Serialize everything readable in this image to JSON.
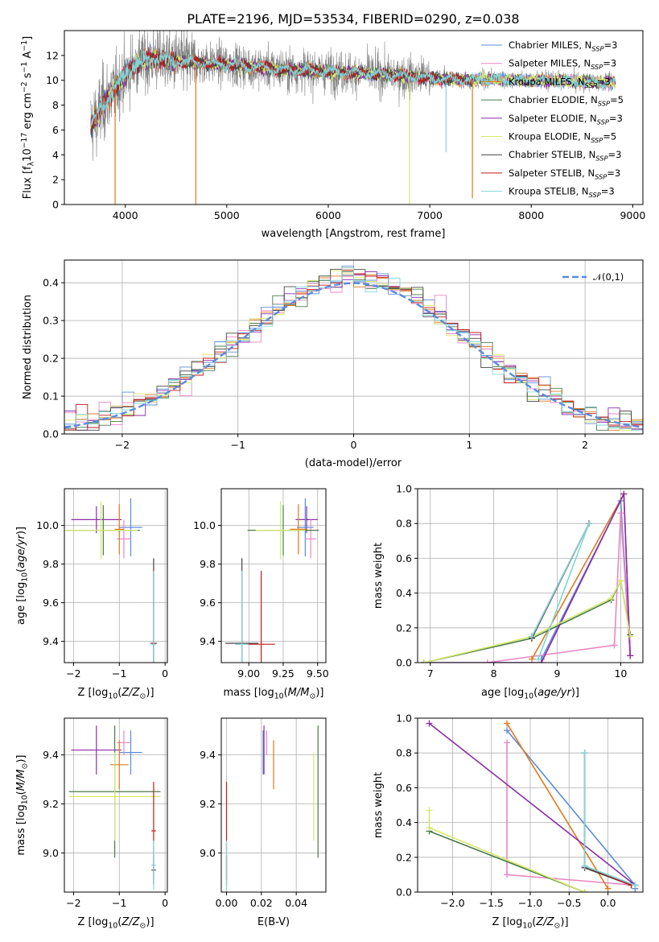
{
  "title": "PLATE=2196, MJD=53534, FIBERID=0290, z=0.038",
  "colors": {
    "chabrier_miles": "#5b8bd9",
    "salpeter_miles": "#e887c4",
    "kroupa_miles": "#e07a1e",
    "chabrier_elodie": "#4a7a4a",
    "salpeter_elodie": "#8a2ca8",
    "kroupa_elodie": "#d6e86a",
    "chabrier_stelib": "#444444",
    "salpeter_stelib": "#c21b1b",
    "kroupa_stelib": "#7fd6d9",
    "spectrum_data": "#808080",
    "gaussian": "#5b8bd9",
    "grid": "#b0b0b0"
  },
  "legend_models": [
    {
      "key": "chabrier_miles",
      "name": "Chabrier MILES",
      "nssp": "3"
    },
    {
      "key": "salpeter_miles",
      "name": "Salpeter MILES",
      "nssp": "3"
    },
    {
      "key": "kroupa_miles",
      "name": "Kroupa MILES",
      "nssp": "3"
    },
    {
      "key": "chabrier_elodie",
      "name": "Chabrier ELODIE",
      "nssp": "5"
    },
    {
      "key": "salpeter_elodie",
      "name": "Salpeter ELODIE",
      "nssp": "3"
    },
    {
      "key": "kroupa_elodie",
      "name": "Kroupa ELODIE",
      "nssp": "5"
    },
    {
      "key": "chabrier_stelib",
      "name": "Chabrier STELIB",
      "nssp": "3"
    },
    {
      "key": "salpeter_stelib",
      "name": "Salpeter STELIB",
      "nssp": "3"
    },
    {
      "key": "kroupa_stelib",
      "name": "Kroupa STELIB",
      "nssp": "3"
    }
  ],
  "chart_data": [
    {
      "id": "spectrum",
      "type": "line",
      "title": "PLATE=2196, MJD=53534, FIBERID=0290, z=0.038",
      "xlabel": "wavelength [Angstrom, rest frame]",
      "ylabel": "Flux [f_λ10^-17 erg cm^-2 s^-1 A^-1]",
      "xlim": [
        3400,
        9100
      ],
      "ylim": [
        0,
        14
      ],
      "xticks": [
        4000,
        5000,
        6000,
        7000,
        8000,
        9000
      ],
      "yticks": [
        0,
        2,
        4,
        6,
        8,
        10,
        12
      ],
      "grid": false,
      "legend_position": "top-right",
      "data_range": [
        3660,
        8830
      ],
      "continuum": {
        "x": [
          3660,
          3720,
          3800,
          3900,
          4000,
          4100,
          4300,
          4500,
          5000,
          5500,
          6000,
          6500,
          7000,
          7400,
          7500,
          8000,
          8500,
          8830
        ],
        "y": [
          6.3,
          7.0,
          8.3,
          9.3,
          10.4,
          11.4,
          11.8,
          11.5,
          11.3,
          10.9,
          10.7,
          10.5,
          10.2,
          10.0,
          10.1,
          10.0,
          9.9,
          9.8
        ]
      },
      "drops": [
        {
          "model": "kroupa_miles",
          "x": 3900,
          "y": 0
        },
        {
          "model": "kroupa_miles",
          "x": 4695,
          "y": 0
        },
        {
          "model": "kroupa_elodie",
          "x": 6800,
          "y": 0
        },
        {
          "model": "kroupa_stelib",
          "x": 7160,
          "y": 4.2
        },
        {
          "model": "kroupa_miles",
          "x": 7420,
          "y": 0.5
        }
      ]
    },
    {
      "id": "residuals",
      "type": "histogram",
      "xlabel": "(data-model)/error",
      "ylabel": "Normed distribution",
      "xlim": [
        -2.5,
        2.5
      ],
      "ylim": [
        0,
        0.46
      ],
      "xticks": [
        -2,
        -1,
        0,
        1,
        2
      ],
      "yticks": [
        0.0,
        0.1,
        0.2,
        0.3,
        0.4
      ],
      "grid": true,
      "legend": "𝒩(0,1)",
      "legend_position": "top-right",
      "bin_width": 0.1,
      "bins_start": -2.5,
      "reference_curve": "normal(0,1)"
    },
    {
      "id": "age_vs_Z",
      "type": "scatter",
      "xlabel": "Z [log10(Z/Z⊙)]",
      "ylabel": "age [log10(age/yr)]",
      "xlim": [
        -2.2,
        0.05
      ],
      "ylim": [
        9.29,
        10.19
      ],
      "xticks": [
        -2,
        -1,
        0
      ],
      "yticks": [
        9.4,
        9.6,
        9.8,
        10.0
      ],
      "grid": true,
      "points": [
        {
          "model": "salpeter_elodie",
          "x": -1.5,
          "y": 10.03,
          "ex": 0.55,
          "ey": 0.07
        },
        {
          "model": "chabrier_miles",
          "x": -0.75,
          "y": 9.99,
          "ex": 0.25,
          "ey": 0.15
        },
        {
          "model": "salpeter_miles",
          "x": -0.9,
          "y": 9.93,
          "ex": 0.15,
          "ey": 0.1
        },
        {
          "model": "kroupa_miles",
          "x": -1.0,
          "y": 9.98,
          "ex": 0.1,
          "ey": 0.13
        },
        {
          "model": "chabrier_elodie",
          "x": -1.35,
          "y": 9.975,
          "ex": 0.8,
          "ey": 0.13
        },
        {
          "model": "kroupa_elodie",
          "x": -1.4,
          "y": 9.975,
          "ex": 0.8,
          "ey": 0.15
        },
        {
          "model": "chabrier_stelib",
          "x": -0.25,
          "y": 9.39,
          "ex": 0.07,
          "ey": 0.44
        },
        {
          "model": "salpeter_stelib",
          "x": -0.25,
          "y": 9.39,
          "ex": 0.05,
          "ey": 0.38
        },
        {
          "model": "kroupa_stelib",
          "x": -0.25,
          "y": 9.385,
          "ex": 0.05,
          "ey": 0.38
        }
      ]
    },
    {
      "id": "age_vs_mass",
      "type": "scatter",
      "xlabel": "mass [log10(M/M⊙)]",
      "ylabel": "",
      "xlim": [
        8.8,
        9.56
      ],
      "ylim": [
        9.29,
        10.19
      ],
      "xticks": [
        9.0,
        9.25,
        9.5
      ],
      "yticks": [
        9.4,
        9.6,
        9.8,
        10.0
      ],
      "grid": true,
      "points": [
        {
          "model": "salpeter_elodie",
          "x": 9.42,
          "y": 10.03,
          "ex": 0.08,
          "ey": 0.07
        },
        {
          "model": "chabrier_miles",
          "x": 9.41,
          "y": 9.99,
          "ex": 0.06,
          "ey": 0.15
        },
        {
          "model": "salpeter_miles",
          "x": 9.45,
          "y": 9.93,
          "ex": 0.04,
          "ey": 0.1
        },
        {
          "model": "kroupa_miles",
          "x": 9.36,
          "y": 9.98,
          "ex": 0.06,
          "ey": 0.13
        },
        {
          "model": "chabrier_elodie",
          "x": 9.25,
          "y": 9.975,
          "ex": 0.26,
          "ey": 0.13
        },
        {
          "model": "kroupa_elodie",
          "x": 9.23,
          "y": 9.975,
          "ex": 0.18,
          "ey": 0.15
        },
        {
          "model": "chabrier_stelib",
          "x": 8.95,
          "y": 9.39,
          "ex": 0.12,
          "ey": 0.44
        },
        {
          "model": "salpeter_stelib",
          "x": 9.09,
          "y": 9.385,
          "ex": 0.1,
          "ey": 0.38
        },
        {
          "model": "kroupa_stelib",
          "x": 8.95,
          "y": 9.385,
          "ex": 0.05,
          "ey": 0.38
        }
      ]
    },
    {
      "id": "weight_vs_age",
      "type": "line",
      "xlabel": "age [log10(age/yr)]",
      "ylabel": "mass weight",
      "xlim": [
        6.8,
        10.35
      ],
      "ylim": [
        0,
        1
      ],
      "xticks": [
        7,
        8,
        9,
        10
      ],
      "yticks": [
        0.0,
        0.2,
        0.4,
        0.6,
        0.8,
        1.0
      ],
      "grid": true,
      "series": [
        {
          "model": "chabrier_miles",
          "x": [
            8.75,
            10.0,
            10.15
          ],
          "y": [
            0.02,
            0.93,
            0.04
          ]
        },
        {
          "model": "salpeter_miles",
          "x": [
            7.9,
            9.9,
            10.0,
            10.15
          ],
          "y": [
            0.0,
            0.1,
            0.86,
            0.04
          ]
        },
        {
          "model": "kroupa_miles",
          "x": [
            8.6,
            10.05,
            10.15
          ],
          "y": [
            0.02,
            0.97,
            0.04
          ]
        },
        {
          "model": "chabrier_elodie",
          "x": [
            6.9,
            8.6,
            9.85,
            10.0,
            10.15
          ],
          "y": [
            0.0,
            0.14,
            0.36,
            0.47,
            0.16
          ]
        },
        {
          "model": "salpeter_elodie",
          "x": [
            6.9,
            8.75,
            10.05,
            10.15
          ],
          "y": [
            0.0,
            0.0,
            0.97,
            0.04
          ]
        },
        {
          "model": "kroupa_elodie",
          "x": [
            6.9,
            8.6,
            9.85,
            10.0,
            10.15
          ],
          "y": [
            0.0,
            0.15,
            0.37,
            0.47,
            0.15
          ]
        },
        {
          "model": "chabrier_stelib",
          "x": [
            8.6,
            9.5,
            9.5
          ],
          "y": [
            0.14,
            0.8,
            0.8
          ]
        },
        {
          "model": "salpeter_stelib",
          "x": [
            8.6,
            9.5
          ],
          "y": [
            0.15,
            0.8
          ]
        },
        {
          "model": "kroupa_stelib",
          "x": [
            8.6,
            9.5,
            8.7
          ],
          "y": [
            0.15,
            0.8,
            0.02
          ]
        }
      ]
    },
    {
      "id": "mass_vs_Z",
      "type": "scatter",
      "xlabel": "Z [log10(Z/Z⊙)]",
      "ylabel": "mass [log10(M/M⊙)]",
      "xlim": [
        -2.2,
        0.05
      ],
      "ylim": [
        8.84,
        9.55
      ],
      "xticks": [
        -2,
        -1,
        0
      ],
      "yticks": [
        9.0,
        9.2,
        9.4
      ],
      "grid": true,
      "points": [
        {
          "model": "salpeter_elodie",
          "x": -1.5,
          "y": 9.42,
          "ex": 0.55,
          "ey": 0.1
        },
        {
          "model": "chabrier_miles",
          "x": -0.75,
          "y": 9.41,
          "ex": 0.25,
          "ey": 0.09
        },
        {
          "model": "salpeter_miles",
          "x": -0.9,
          "y": 9.45,
          "ex": 0.15,
          "ey": 0.05
        },
        {
          "model": "kroupa_miles",
          "x": -1.0,
          "y": 9.36,
          "ex": 0.2,
          "ey": 0.1
        },
        {
          "model": "chabrier_elodie",
          "x": -1.1,
          "y": 9.25,
          "ex": 1.0,
          "ey": 0.27
        },
        {
          "model": "kroupa_elodie",
          "x": -1.1,
          "y": 9.23,
          "ex": 1.0,
          "ey": 0.18
        },
        {
          "model": "chabrier_stelib",
          "x": -0.25,
          "y": 8.93,
          "ex": 0.05,
          "ey": 0.06
        },
        {
          "model": "salpeter_stelib",
          "x": -0.25,
          "y": 9.09,
          "ex": 0.05,
          "ey": 0.2
        },
        {
          "model": "kroupa_stelib",
          "x": -0.25,
          "y": 8.95,
          "ex": 0.05,
          "ey": 0.1
        }
      ]
    },
    {
      "id": "mass_vs_ebv",
      "type": "scatter",
      "xlabel": "E(B-V)",
      "ylabel": "",
      "xlim": [
        -0.003,
        0.057
      ],
      "ylim": [
        8.84,
        9.55
      ],
      "xticks": [
        0.0,
        0.02,
        0.04
      ],
      "yticks": [
        9.0,
        9.2,
        9.4
      ],
      "grid": true,
      "points": [
        {
          "model": "chabrier_stelib",
          "x": 0.0,
          "y": 8.93,
          "ey": 0.06
        },
        {
          "model": "salpeter_stelib",
          "x": 0.0,
          "y": 9.09,
          "ey": 0.2
        },
        {
          "model": "kroupa_stelib",
          "x": 0.0,
          "y": 8.95,
          "ey": 0.1
        },
        {
          "model": "chabrier_miles",
          "x": 0.021,
          "y": 9.41,
          "ey": 0.09
        },
        {
          "model": "salpeter_elodie",
          "x": 0.0215,
          "y": 9.42,
          "ey": 0.1
        },
        {
          "model": "salpeter_miles",
          "x": 0.023,
          "y": 9.45,
          "ey": 0.05
        },
        {
          "model": "kroupa_miles",
          "x": 0.027,
          "y": 9.36,
          "ey": 0.1
        },
        {
          "model": "kroupa_elodie",
          "x": 0.05,
          "y": 9.23,
          "ey": 0.18
        },
        {
          "model": "chabrier_elodie",
          "x": 0.0525,
          "y": 9.25,
          "ey": 0.27
        }
      ]
    },
    {
      "id": "weight_vs_Z",
      "type": "line",
      "xlabel": "Z [log10(Z/Z⊙)]",
      "ylabel": "mass weight",
      "xlim": [
        -2.45,
        0.45
      ],
      "ylim": [
        0,
        1
      ],
      "xticks": [
        -2.0,
        -1.5,
        -1.0,
        -0.5,
        0.0
      ],
      "yticks": [
        0.0,
        0.2,
        0.4,
        0.6,
        0.8,
        1.0
      ],
      "grid": true,
      "series": [
        {
          "model": "chabrier_miles",
          "x": [
            -1.3,
            0.35,
            0.35
          ],
          "y": [
            0.93,
            0.04,
            0.02
          ]
        },
        {
          "model": "salpeter_miles",
          "x": [
            -1.3,
            -1.3,
            0.35
          ],
          "y": [
            0.86,
            0.1,
            0.04
          ]
        },
        {
          "model": "kroupa_miles",
          "x": [
            -1.3,
            0.0
          ],
          "y": [
            0.97,
            0.02
          ]
        },
        {
          "model": "chabrier_elodie",
          "x": [
            -2.3,
            -0.3
          ],
          "y": [
            0.35,
            0.0
          ]
        },
        {
          "model": "salpeter_elodie",
          "x": [
            -2.3,
            0.35
          ],
          "y": [
            0.97,
            0.04
          ]
        },
        {
          "model": "kroupa_elodie",
          "x": [
            -2.3,
            -2.3,
            -0.3
          ],
          "y": [
            0.47,
            0.37,
            0.0
          ]
        },
        {
          "model": "chabrier_stelib",
          "x": [
            -0.3,
            -0.3,
            0.3
          ],
          "y": [
            0.8,
            0.14,
            0.04
          ]
        },
        {
          "model": "salpeter_stelib",
          "x": [
            -0.3,
            0.3
          ],
          "y": [
            0.15,
            0.04
          ]
        },
        {
          "model": "kroupa_stelib",
          "x": [
            -0.3,
            -0.3,
            0.35
          ],
          "y": [
            0.8,
            0.15,
            0.04
          ]
        }
      ]
    }
  ]
}
